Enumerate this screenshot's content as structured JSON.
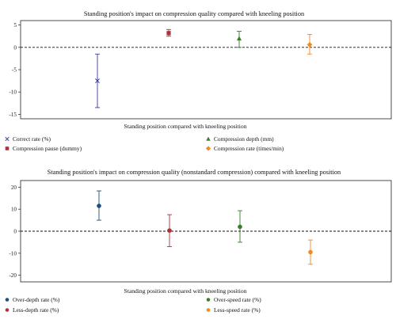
{
  "chart_data": [
    {
      "type": "scatter",
      "title": "Standing position's impact on compression quality compared with kneeling position",
      "xlabel": "Standing position compared with kneeling position",
      "ylabel": "",
      "ylim": [
        -16,
        6
      ],
      "yticks": [
        5,
        0,
        -5,
        -10,
        -15
      ],
      "reference_line": 0,
      "legend_position": "bottom",
      "series": [
        {
          "name": "Correct rate (%)",
          "marker": "x",
          "color": "#3b3b9e",
          "value": -7.5,
          "ci": [
            -13.5,
            -1.5
          ]
        },
        {
          "name": "Compression pause (dummy)",
          "marker": "square",
          "color": "#b0303a",
          "value": 3.2,
          "ci": [
            2.5,
            4.0
          ]
        },
        {
          "name": "Compression depth (mm)",
          "marker": "triangle",
          "color": "#3c7a2c",
          "value": 2.0,
          "ci": [
            0.0,
            3.6
          ]
        },
        {
          "name": "Compression rate (times/min)",
          "marker": "diamond",
          "color": "#f08a22",
          "value": 0.6,
          "ci": [
            -1.5,
            2.9
          ]
        }
      ]
    },
    {
      "type": "scatter",
      "title": "Standing position's impact on compression quality (nonstandard compression) compared with kneeling position",
      "xlabel": "Standing position compared with kneeling position",
      "ylabel": "",
      "ylim": [
        -23,
        23
      ],
      "yticks": [
        20,
        10,
        0,
        -10,
        -20
      ],
      "reference_line": 0,
      "legend_position": "bottom",
      "series": [
        {
          "name": "Over-depth rate (%)",
          "marker": "circle",
          "color": "#1f4e79",
          "value": 11.5,
          "ci": [
            5.0,
            18.3
          ]
        },
        {
          "name": "Less-depth rate (%)",
          "marker": "circle",
          "color": "#b0303a",
          "value": 0.3,
          "ci": [
            -7.0,
            7.5
          ]
        },
        {
          "name": "Over-speed rate (%)",
          "marker": "circle",
          "color": "#3c7a2c",
          "value": 2.0,
          "ci": [
            -5.0,
            9.3
          ]
        },
        {
          "name": "Less-speed rate (%)",
          "marker": "circle",
          "color": "#f08a22",
          "value": -9.5,
          "ci": [
            -15.0,
            -4.0
          ]
        }
      ]
    }
  ]
}
